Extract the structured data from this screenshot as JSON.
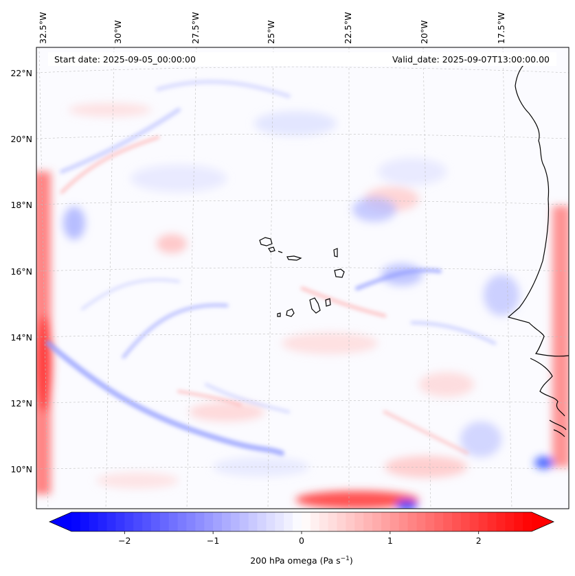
{
  "map": {
    "annotations": {
      "start_date": "Start date: 2025-09-05_00:00:00",
      "valid_date": "Valid_date: 2025-09-07T13:00:00.00"
    },
    "lon_labels": [
      "32.5°W",
      "30°W",
      "27.5°W",
      "25°W",
      "22.5°W",
      "20°W",
      "17.5°W"
    ],
    "lat_labels": [
      "22°N",
      "20°N",
      "18°N",
      "16°N",
      "14°N",
      "12°N",
      "10°N"
    ],
    "extent": {
      "lon_min": -33.0,
      "lon_max": -15.6,
      "lat_min": 8.9,
      "lat_max": 22.8
    },
    "gridlines": true
  },
  "colorbar": {
    "ticks": [
      "−2",
      "−1",
      "0",
      "1",
      "2"
    ],
    "tick_values": [
      -2,
      -1,
      0,
      1,
      2
    ],
    "range": [
      -2.6,
      2.6
    ],
    "label_main": "200 hPa omega (Pa s",
    "label_sup": "−1",
    "label_close": ")",
    "colormap": "bwr",
    "colors": {
      "negative": "#0000ff",
      "neutral": "#ffffff",
      "positive": "#ff0000"
    }
  }
}
